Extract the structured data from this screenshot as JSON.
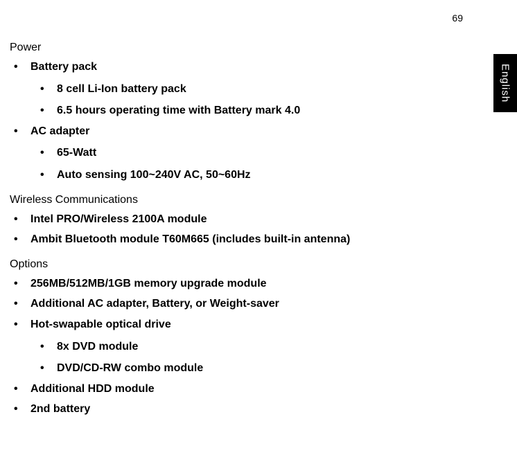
{
  "page_number": "69",
  "language_tab": "English",
  "colors": {
    "page_bg": "#ffffff",
    "text": "#000000",
    "tab_bg": "#000000",
    "tab_text": "#ffffff"
  },
  "sections": {
    "power": {
      "title": "Power",
      "items": [
        {
          "label": "Battery pack",
          "children": [
            "8 cell  Li-Ion battery pack",
            "6.5 hours operating time with Battery mark 4.0"
          ]
        },
        {
          "label": " AC adapter",
          "children": [
            "65-Watt",
            "Auto sensing 100~240V AC, 50~60Hz"
          ]
        }
      ]
    },
    "wireless": {
      "title": "Wireless Communications",
      "items": [
        {
          "label": "Intel PRO/Wireless 2100A module"
        },
        {
          "label": "Ambit Bluetooth module T60M665 (includes built-in antenna)"
        }
      ]
    },
    "options": {
      "title": "Options",
      "items": [
        {
          "label": "256MB/512MB/1GB memory upgrade module"
        },
        {
          "label": "Additional AC adapter, Battery, or Weight-saver"
        },
        {
          "label": "Hot-swapable optical drive",
          "children": [
            "8x DVD module",
            "DVD/CD-RW combo module"
          ]
        },
        {
          "label": "Additional HDD module"
        },
        {
          "label": "2nd battery"
        }
      ]
    }
  }
}
